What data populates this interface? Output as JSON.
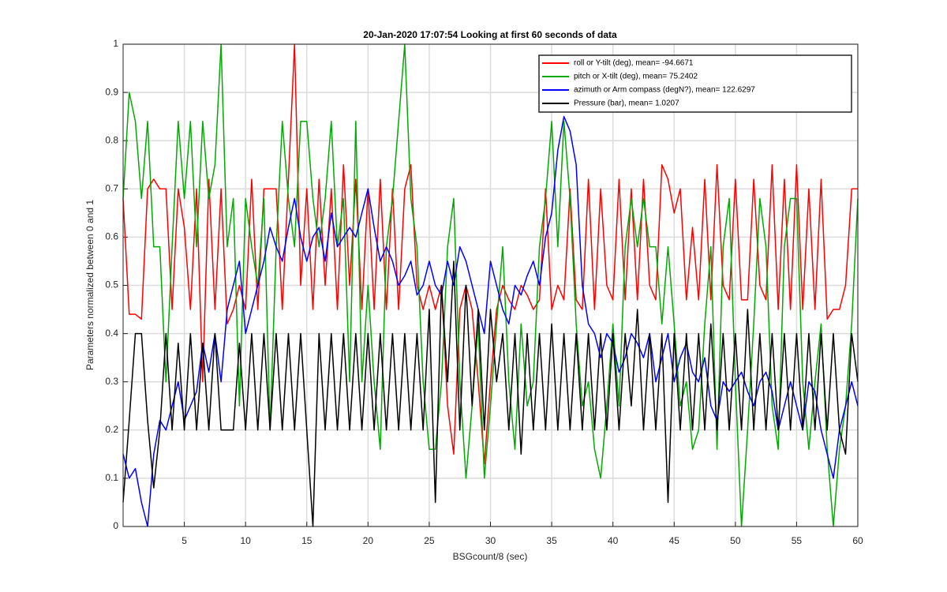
{
  "chart_data": {
    "type": "line",
    "title": "20-Jan-2020 17:07:54 Looking at first 60 seconds of data",
    "xlabel": "BSGcount/8 (sec)",
    "ylabel": "Parameters normalized between 0 and 1",
    "x": [
      0,
      0.5,
      1,
      1.5,
      2,
      2.5,
      3,
      3.5,
      4,
      4.5,
      5,
      5.5,
      6,
      6.5,
      7,
      7.5,
      8,
      8.5,
      9,
      9.5,
      10,
      10.5,
      11,
      11.5,
      12,
      12.5,
      13,
      13.5,
      14,
      14.5,
      15,
      15.5,
      16,
      16.5,
      17,
      17.5,
      18,
      18.5,
      19,
      19.5,
      20,
      20.5,
      21,
      21.5,
      22,
      22.5,
      23,
      23.5,
      24,
      24.5,
      25,
      25.5,
      26,
      26.5,
      27,
      27.5,
      28,
      28.5,
      29,
      29.5,
      30,
      30.5,
      31,
      31.5,
      32,
      32.5,
      33,
      33.5,
      34,
      34.5,
      35,
      35.5,
      36,
      36.5,
      37,
      37.5,
      38,
      38.5,
      39,
      39.5,
      40,
      40.5,
      41,
      41.5,
      42,
      42.5,
      43,
      43.5,
      44,
      44.5,
      45,
      45.5,
      46,
      46.5,
      47,
      47.5,
      48,
      48.5,
      49,
      49.5,
      50,
      50.5,
      51,
      51.5,
      52,
      52.5,
      53,
      53.5,
      54,
      54.5,
      55,
      55.5,
      56,
      56.5,
      57,
      57.5,
      58,
      58.5,
      59,
      59.5,
      60
    ],
    "series": [
      {
        "name": "roll or Y-tilt (deg), mean= -94.6671",
        "color": "#ff0000",
        "values": [
          0.68,
          0.44,
          0.44,
          0.43,
          0.7,
          0.72,
          0.7,
          0.7,
          0.45,
          0.7,
          0.62,
          0.45,
          0.7,
          0.3,
          0.72,
          0.45,
          0.7,
          0.42,
          0.45,
          0.5,
          0.45,
          0.72,
          0.45,
          0.7,
          0.7,
          0.7,
          0.45,
          0.72,
          1,
          0.5,
          0.7,
          0.45,
          0.72,
          0.5,
          0.7,
          0.45,
          0.75,
          0.5,
          0.72,
          0.45,
          0.7,
          0.45,
          0.72,
          0.45,
          0.7,
          0.45,
          0.7,
          0.75,
          0.5,
          0.45,
          0.5,
          0.45,
          0.5,
          0.25,
          0.15,
          0.45,
          0.5,
          0.45,
          0.3,
          0.13,
          0.3,
          0.45,
          0.5,
          0.47,
          0.45,
          0.5,
          0.48,
          0.45,
          0.47,
          0.7,
          0.45,
          0.5,
          0.47,
          0.7,
          0.47,
          0.45,
          0.72,
          0.45,
          0.7,
          0.5,
          0.47,
          0.72,
          0.47,
          0.7,
          0.47,
          0.72,
          0.5,
          0.47,
          0.75,
          0.72,
          0.65,
          0.7,
          0.47,
          0.62,
          0.47,
          0.72,
          0.47,
          0.75,
          0.5,
          0.47,
          0.72,
          0.47,
          0.47,
          0.72,
          0.5,
          0.47,
          0.75,
          0.45,
          0.72,
          0.45,
          0.75,
          0.45,
          0.7,
          0.45,
          0.72,
          0.43,
          0.45,
          0.45,
          0.5,
          0.7,
          0.7
        ]
      },
      {
        "name": "pitch or X-tilt (deg), mean= 75.2402",
        "color": "#00aa00",
        "values": [
          0.68,
          0.9,
          0.84,
          0.68,
          0.84,
          0.58,
          0.58,
          0.3,
          0.58,
          0.84,
          0.68,
          0.84,
          0.58,
          0.84,
          0.68,
          0.75,
          1,
          0.58,
          0.68,
          0.25,
          0.68,
          0.58,
          0.5,
          0.68,
          0.2,
          0.58,
          0.84,
          0.68,
          0.58,
          0.84,
          0.84,
          0.68,
          0.58,
          0.68,
          0.84,
          0.58,
          0.68,
          0.3,
          0.84,
          0.3,
          0.5,
          0.3,
          0.16,
          0.58,
          0.68,
          0.84,
          1,
          0.68,
          0.58,
          0.3,
          0.16,
          0.16,
          0.3,
          0.58,
          0.68,
          0.3,
          0.1,
          0.25,
          0.42,
          0.1,
          0.25,
          0.42,
          0.58,
          0.3,
          0.16,
          0.42,
          0.25,
          0.3,
          0.58,
          0.68,
          0.84,
          0.58,
          0.84,
          0.68,
          0.42,
          0.25,
          0.3,
          0.16,
          0.1,
          0.25,
          0.42,
          0.25,
          0.58,
          0.68,
          0.58,
          0.68,
          0.58,
          0.58,
          0.42,
          0.58,
          0.42,
          0.25,
          0.3,
          0.16,
          0.2,
          0.42,
          0.58,
          0.16,
          0.58,
          0.68,
          0.3,
          0,
          0.2,
          0.42,
          0.68,
          0.58,
          0.25,
          0.16,
          0.58,
          0.68,
          0.68,
          0.3,
          0.16,
          0.3,
          0.42,
          0.16,
          0,
          0.16,
          0.25,
          0.42,
          0.68
        ]
      },
      {
        "name": "azimuth or Arm compass (degN?), mean= 122.6297",
        "color": "#0000ff",
        "values": [
          0.15,
          0.1,
          0.12,
          0.05,
          0,
          0.15,
          0.22,
          0.2,
          0.25,
          0.3,
          0.22,
          0.25,
          0.28,
          0.38,
          0.32,
          0.4,
          0.3,
          0.45,
          0.5,
          0.55,
          0.4,
          0.45,
          0.5,
          0.55,
          0.62,
          0.58,
          0.55,
          0.62,
          0.68,
          0.6,
          0.55,
          0.6,
          0.62,
          0.55,
          0.65,
          0.58,
          0.6,
          0.62,
          0.6,
          0.65,
          0.7,
          0.62,
          0.55,
          0.58,
          0.55,
          0.5,
          0.52,
          0.55,
          0.48,
          0.5,
          0.55,
          0.5,
          0.48,
          0.55,
          0.5,
          0.58,
          0.55,
          0.5,
          0.45,
          0.4,
          0.55,
          0.5,
          0.45,
          0.42,
          0.5,
          0.48,
          0.52,
          0.55,
          0.5,
          0.6,
          0.65,
          0.78,
          0.85,
          0.82,
          0.75,
          0.5,
          0.42,
          0.4,
          0.35,
          0.4,
          0.38,
          0.32,
          0.35,
          0.4,
          0.38,
          0.35,
          0.4,
          0.3,
          0.35,
          0.4,
          0.3,
          0.35,
          0.38,
          0.32,
          0.3,
          0.35,
          0.25,
          0.22,
          0.3,
          0.28,
          0.3,
          0.32,
          0.28,
          0.25,
          0.3,
          0.32,
          0.28,
          0.2,
          0.25,
          0.3,
          0.25,
          0.2,
          0.3,
          0.28,
          0.2,
          0.15,
          0.1,
          0.2,
          0.25,
          0.3,
          0.25
        ]
      },
      {
        "name": "Pressure (bar), mean= 1.0207",
        "color": "#000000",
        "values": [
          0.05,
          0.22,
          0.4,
          0.4,
          0.22,
          0.08,
          0.2,
          0.4,
          0.2,
          0.38,
          0.2,
          0.4,
          0.2,
          0.38,
          0.2,
          0.4,
          0.2,
          0.2,
          0.2,
          0.38,
          0.2,
          0.4,
          0.2,
          0.4,
          0.2,
          0.4,
          0.2,
          0.4,
          0.2,
          0.4,
          0.2,
          0,
          0.4,
          0.2,
          0.4,
          0.2,
          0.4,
          0.2,
          0.4,
          0.2,
          0.4,
          0.2,
          0.4,
          0.2,
          0.4,
          0.2,
          0.4,
          0.2,
          0.4,
          0.2,
          0.45,
          0.05,
          0.5,
          0.3,
          0.55,
          0.2,
          0.5,
          0.25,
          0.45,
          0.2,
          0.45,
          0.3,
          0.4,
          0.2,
          0.4,
          0.15,
          0.4,
          0.2,
          0.4,
          0.2,
          0.42,
          0.2,
          0.4,
          0.2,
          0.4,
          0.2,
          0.4,
          0.2,
          0.4,
          0.2,
          0.4,
          0.2,
          0.4,
          0.25,
          0.45,
          0.2,
          0.4,
          0.2,
          0.4,
          0.05,
          0.4,
          0.2,
          0.4,
          0.2,
          0.4,
          0.2,
          0.42,
          0.2,
          0.4,
          0.2,
          0.4,
          0.2,
          0.45,
          0.2,
          0.4,
          0.2,
          0.4,
          0.2,
          0.4,
          0.2,
          0.4,
          0.2,
          0.4,
          0.2,
          0.4,
          0.2,
          0.4,
          0.2,
          0.15,
          0.4,
          0.3
        ]
      }
    ],
    "xlim": [
      0,
      60
    ],
    "xticks": [
      5,
      10,
      15,
      20,
      25,
      30,
      35,
      40,
      45,
      50,
      55,
      60
    ],
    "ylim": [
      0,
      1
    ],
    "yticks": [
      0,
      0.1,
      0.2,
      0.3,
      0.4,
      0.5,
      0.6,
      0.7,
      0.8,
      0.9,
      1
    ],
    "grid": true,
    "legend": "top-right"
  }
}
